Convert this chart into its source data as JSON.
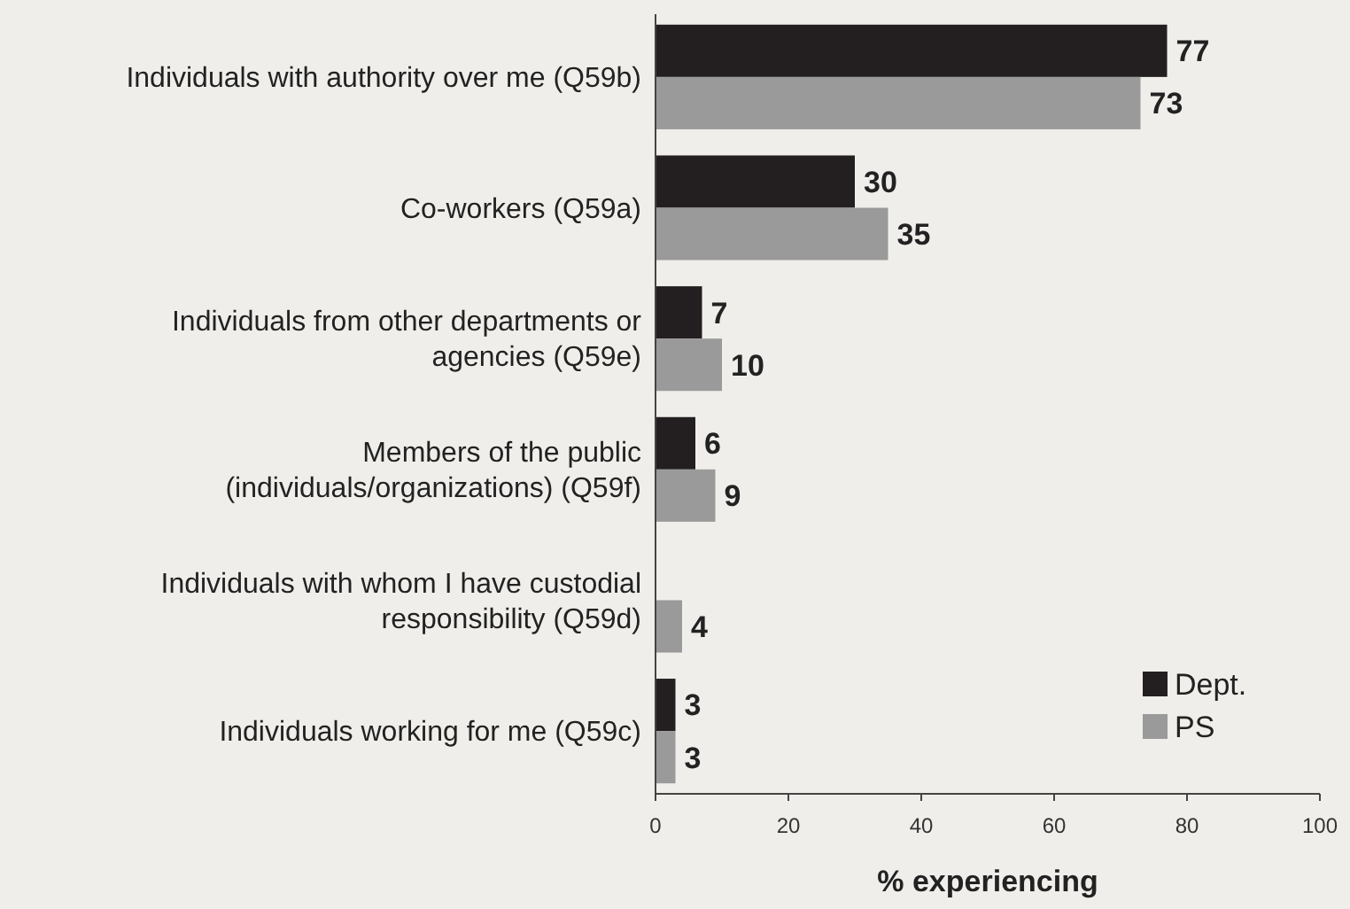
{
  "chart_data": {
    "type": "bar",
    "orientation": "horizontal",
    "xlabel": "% experiencing",
    "categories": [
      "Individuals with authority over me (Q59b)",
      "Co-workers (Q59a)",
      "Individuals from other departments or\nagencies (Q59e)",
      "Members of the public\n(individuals/organizations) (Q59f)",
      "Individuals with whom I have custodial\nresponsibility (Q59d)",
      "Individuals working for me (Q59c)"
    ],
    "series": [
      {
        "name": "Dept.",
        "color": "#231f20",
        "values": [
          77,
          30,
          7,
          6,
          null,
          3
        ]
      },
      {
        "name": "PS",
        "color": "#9a9a9a",
        "values": [
          73,
          35,
          10,
          9,
          4,
          3
        ]
      }
    ],
    "xlim": [
      0,
      100
    ],
    "xticks": [
      0,
      20,
      40,
      60,
      80,
      100
    ],
    "data_labels": true,
    "legend": "bottom right",
    "grid": false
  }
}
